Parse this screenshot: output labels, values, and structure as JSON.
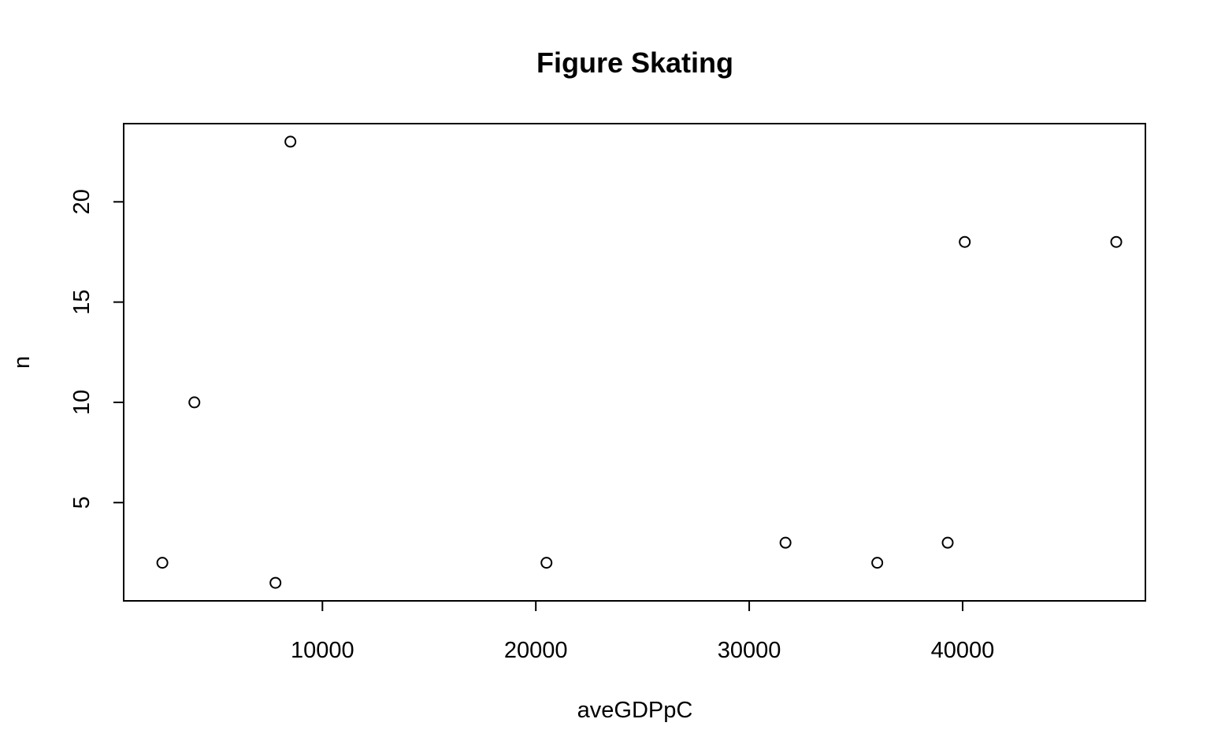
{
  "chart_data": {
    "type": "scatter",
    "title": "Figure Skating",
    "xlabel": "aveGDPpC",
    "ylabel": "n",
    "xlim": [
      687,
      48565
    ],
    "ylim": [
      0.1,
      23.9
    ],
    "x_ticks": [
      10000,
      20000,
      30000,
      40000
    ],
    "y_ticks": [
      5,
      10,
      15,
      20
    ],
    "grid": false,
    "legend": "none",
    "colors": {
      "points": "#000000",
      "axes": "#000000",
      "background": "#ffffff"
    },
    "points": [
      {
        "x": 2500,
        "y": 2
      },
      {
        "x": 4000,
        "y": 10
      },
      {
        "x": 7800,
        "y": 1
      },
      {
        "x": 8500,
        "y": 23
      },
      {
        "x": 20500,
        "y": 2
      },
      {
        "x": 31700,
        "y": 3
      },
      {
        "x": 36000,
        "y": 2
      },
      {
        "x": 39300,
        "y": 3
      },
      {
        "x": 40100,
        "y": 18
      },
      {
        "x": 47200,
        "y": 18
      }
    ]
  }
}
